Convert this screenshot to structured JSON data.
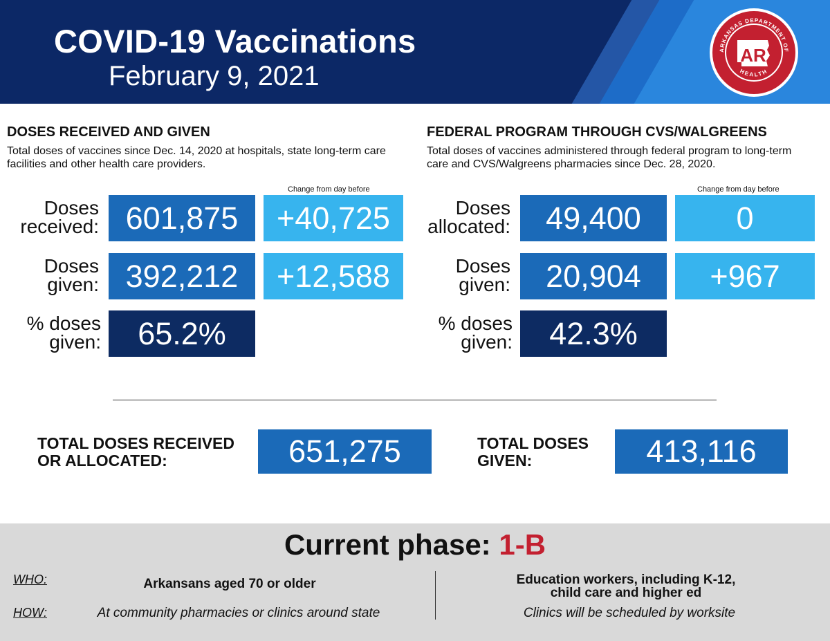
{
  "header": {
    "title": "COVID-19 Vaccinations",
    "date": "February 9, 2021",
    "seal": {
      "ring_text_top": "ARKANSAS DEPARTMENT OF",
      "ring_text_bottom": "HEALTH",
      "center_text": "AR",
      "color": "#c32030"
    }
  },
  "left": {
    "heading": "DOSES RECEIVED AND GIVEN",
    "description": "Total doses of vaccines since Dec. 14, 2020 at hospitals, state long-term care facilities and other health care providers.",
    "change_label": "Change from day before",
    "rows": [
      {
        "label_line1": "Doses",
        "label_line2": "received:",
        "value": "601,875",
        "change": "+40,725"
      },
      {
        "label_line1": "Doses",
        "label_line2": "given:",
        "value": "392,212",
        "change": "+12,588"
      },
      {
        "label_line1": "% doses",
        "label_line2": "given:",
        "value": "65.2%"
      }
    ]
  },
  "right": {
    "heading": "FEDERAL PROGRAM THROUGH CVS/WALGREENS",
    "description": "Total doses of vaccines administered through federal program to long-term care and CVS/Walgreens pharmacies since Dec. 28, 2020.",
    "change_label": "Change from day before",
    "rows": [
      {
        "label_line1": "Doses",
        "label_line2": "allocated:",
        "value": "49,400",
        "change": "0"
      },
      {
        "label_line1": "Doses",
        "label_line2": "given:",
        "value": "20,904",
        "change": "+967"
      },
      {
        "label_line1": "% doses",
        "label_line2": "given:",
        "value": "42.3%"
      }
    ]
  },
  "totals": {
    "received_label_line1": "TOTAL DOSES RECEIVED",
    "received_label_line2": "OR ALLOCATED:",
    "received_value": "651,275",
    "given_label_line1": "TOTAL DOSES",
    "given_label_line2": "GIVEN:",
    "given_value": "413,116"
  },
  "phase": {
    "title_prefix": "Current phase:",
    "title_value": "1-B",
    "who_key": "WHO:",
    "how_key": "HOW:",
    "who_left": "Arkansans aged 70 or older",
    "how_left": "At community pharmacies or clinics around state",
    "who_right_line1": "Education workers, including K-12,",
    "who_right_line2": "child care and higher ed",
    "how_right": "Clinics will be scheduled by worksite"
  },
  "colors": {
    "header_navy": "#0c2866",
    "box_mid_blue": "#1b6ab8",
    "box_light_blue": "#37b4ee",
    "box_dark_navy": "#0d2b62",
    "phase_red": "#c32030",
    "phase_panel_gray": "#d9d9d9"
  }
}
